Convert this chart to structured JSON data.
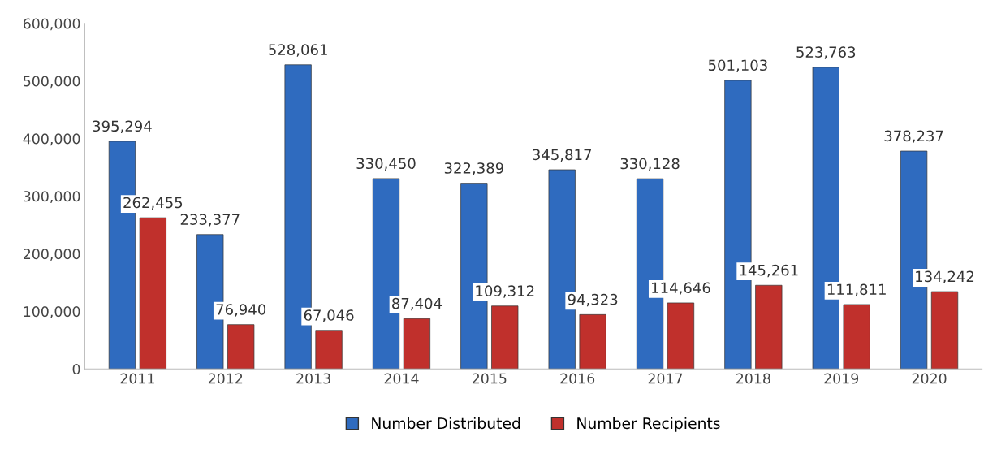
{
  "chart_data": {
    "type": "bar",
    "categories": [
      "2011",
      "2012",
      "2013",
      "2014",
      "2015",
      "2016",
      "2017",
      "2018",
      "2019",
      "2020"
    ],
    "series": [
      {
        "name": "Number Distributed",
        "color": "#2f6bbf",
        "values": [
          395294,
          233377,
          528061,
          330450,
          322389,
          345817,
          330128,
          501103,
          523763,
          378237
        ],
        "value_labels": [
          "395,294",
          "233,377",
          "528,061",
          "330,450",
          "322,389",
          "345,817",
          "330,128",
          "501,103",
          "523,763",
          "378,237"
        ]
      },
      {
        "name": "Number Recipients",
        "color": "#c0302c",
        "values": [
          262455,
          76940,
          67046,
          87404,
          109312,
          94323,
          114646,
          145261,
          111811,
          134242
        ],
        "value_labels": [
          "262,455",
          "76,940",
          "67,046",
          "87,404",
          "109,312",
          "94,323",
          "114,646",
          "145,261",
          "111,811",
          "134,242"
        ]
      }
    ],
    "ylim": [
      0,
      600000
    ],
    "yticks": [
      {
        "value": 0,
        "label": "0"
      },
      {
        "value": 100000,
        "label": "100,000"
      },
      {
        "value": 200000,
        "label": "200,000"
      },
      {
        "value": 300000,
        "label": "300,000"
      },
      {
        "value": 400000,
        "label": "400,000"
      },
      {
        "value": 500000,
        "label": "500,000"
      },
      {
        "value": 600000,
        "label": "600,000"
      }
    ],
    "grid": false,
    "legend": "bottom"
  }
}
